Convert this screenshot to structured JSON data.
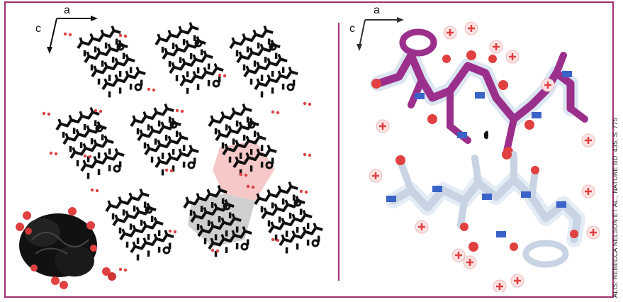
{
  "left_panel": {
    "axis_a": "a",
    "axis_c": "c"
  },
  "right_panel": {
    "axis_a": "a",
    "axis_c": "c"
  },
  "credit": "ALIS: REBECCA NELSON ET AL., NATURE BD. 435, S. 775",
  "colors": {
    "frame": "#a0306f",
    "molecule_dark": "#111111",
    "water": "#e04040",
    "peptide_top": "#9b2f8c",
    "peptide_bottom": "#c8d4e4",
    "nitrogen": "#3a63c8",
    "highlight_pink": "#f7c8c8",
    "highlight_gray": "#cfcfcf"
  }
}
